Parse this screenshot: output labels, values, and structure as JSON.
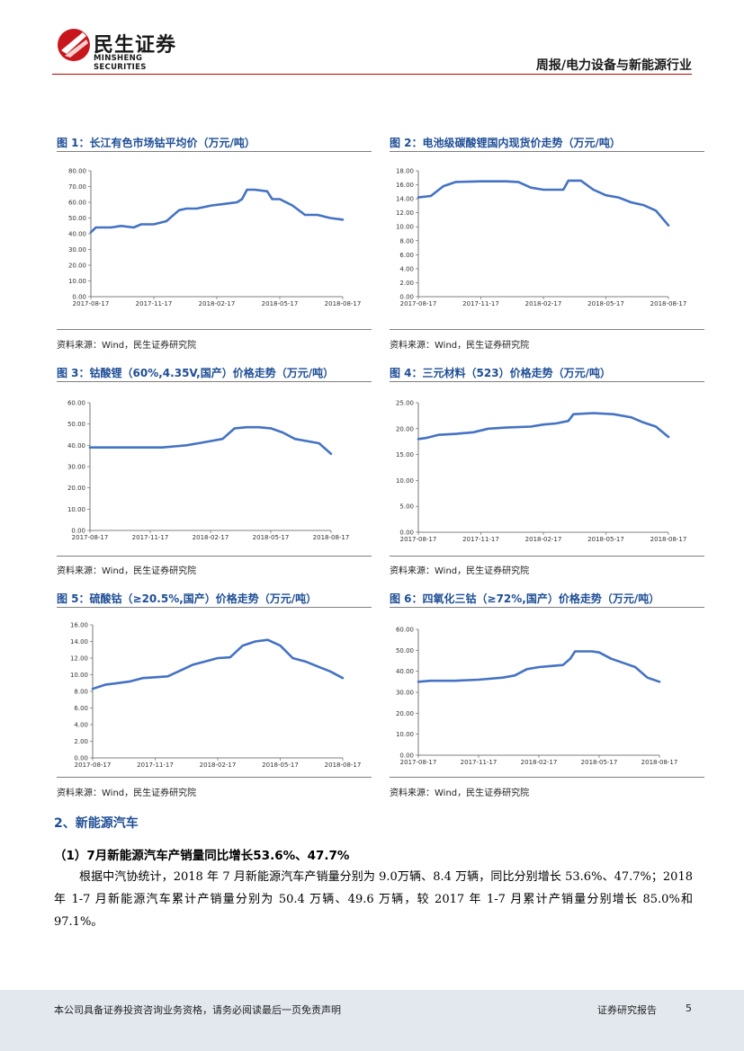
{
  "header": {
    "logo_cn": "民生证券",
    "logo_en": "MINSHENG SECURITIES",
    "report_type": "周报/电力设备与新能源行业"
  },
  "figures": [
    {
      "title": "图 1：长江有色市场钴平均价（万元/吨）",
      "source": "资料来源：Wind，民生证券研究院",
      "chart_data": {
        "type": "line",
        "title": "长江有色市场钴平均价（万元/吨）",
        "ylim": [
          0,
          80
        ],
        "yticks": [
          "0.00",
          "10.00",
          "20.00",
          "30.00",
          "40.00",
          "50.00",
          "60.00",
          "70.00",
          "80.00"
        ],
        "xticks": [
          "2017-08-17",
          "2017-11-17",
          "2018-02-17",
          "2018-05-17",
          "2018-08-17"
        ],
        "x": [
          0,
          0.02,
          0.08,
          0.12,
          0.17,
          0.2,
          0.25,
          0.3,
          0.35,
          0.38,
          0.42,
          0.48,
          0.53,
          0.58,
          0.6,
          0.62,
          0.65,
          0.7,
          0.72,
          0.75,
          0.8,
          0.85,
          0.9,
          0.95,
          1
        ],
        "values": [
          41,
          44,
          44,
          45,
          44,
          46,
          46,
          48,
          55,
          56,
          56,
          58,
          59,
          60,
          62,
          68,
          68,
          67,
          62,
          62,
          58,
          52,
          52,
          50,
          49
        ],
        "color": "#4472c4"
      }
    },
    {
      "title": "图 2：电池级碳酸锂国内现货价走势（万元/吨）",
      "source": "资料来源：Wind，民生证券研究院",
      "chart_data": {
        "type": "line",
        "title": "电池级碳酸锂国内现货价走势（万元/吨）",
        "ylim": [
          0,
          18
        ],
        "yticks": [
          "0.00",
          "2.00",
          "4.00",
          "6.00",
          "8.00",
          "10.00",
          "12.00",
          "14.00",
          "16.00",
          "18.00"
        ],
        "xticks": [
          "2017-08-17",
          "2017-11-17",
          "2018-02-17",
          "2018-05-17",
          "2018-08-17"
        ],
        "x": [
          0,
          0.05,
          0.1,
          0.15,
          0.25,
          0.35,
          0.4,
          0.45,
          0.5,
          0.53,
          0.58,
          0.6,
          0.65,
          0.7,
          0.75,
          0.8,
          0.85,
          0.9,
          0.95,
          1
        ],
        "values": [
          14.2,
          14.4,
          15.8,
          16.4,
          16.5,
          16.5,
          16.4,
          15.6,
          15.3,
          15.3,
          15.3,
          16.6,
          16.6,
          15.3,
          14.5,
          14.2,
          13.5,
          13.1,
          12.3,
          10.2
        ],
        "color": "#4472c4"
      }
    },
    {
      "title": "图 3：钴酸锂（60%,4.35V,国产）价格走势（万元/吨）",
      "source": "资料来源：Wind，民生证券研究院",
      "chart_data": {
        "type": "line",
        "title": "钴酸锂（60%,4.35V,国产）价格走势（万元/吨）",
        "ylim": [
          0,
          60
        ],
        "yticks": [
          "0.00",
          "10.00",
          "20.00",
          "30.00",
          "40.00",
          "50.00",
          "60.00"
        ],
        "xticks": [
          "2017-08-17",
          "2017-11-17",
          "2018-02-17",
          "2018-05-17",
          "2018-08-17"
        ],
        "x": [
          0,
          0.2,
          0.3,
          0.35,
          0.4,
          0.45,
          0.5,
          0.55,
          0.6,
          0.65,
          0.7,
          0.75,
          0.8,
          0.85,
          0.9,
          0.95,
          1
        ],
        "values": [
          39,
          39,
          39,
          39.5,
          40,
          41,
          42,
          43,
          48,
          48.5,
          48.5,
          48,
          46,
          43,
          42,
          41,
          36
        ],
        "color": "#4472c4"
      }
    },
    {
      "title": "图 4：三元材料（523）价格走势（万元/吨）",
      "source": "资料来源：Wind，民生证券研究院",
      "chart_data": {
        "type": "line",
        "title": "三元材料（523）价格走势（万元/吨）",
        "ylim": [
          0,
          25
        ],
        "yticks": [
          "0.00",
          "5.00",
          "10.00",
          "15.00",
          "20.00",
          "25.00"
        ],
        "xticks": [
          "2017-08-17",
          "2017-11-17",
          "2018-02-17",
          "2018-05-17",
          "2018-08-17"
        ],
        "x": [
          0,
          0.03,
          0.08,
          0.15,
          0.22,
          0.28,
          0.35,
          0.45,
          0.5,
          0.55,
          0.6,
          0.62,
          0.7,
          0.78,
          0.85,
          0.9,
          0.95,
          1
        ],
        "values": [
          18,
          18.2,
          18.8,
          19,
          19.3,
          20,
          20.2,
          20.4,
          20.8,
          21,
          21.5,
          22.8,
          23,
          22.8,
          22.2,
          21.2,
          20.4,
          18.4
        ],
        "color": "#4472c4"
      }
    },
    {
      "title": "图 5：硫酸钴（≥20.5%,国产）价格走势（万元/吨）",
      "source": "资料来源：Wind，民生证券研究院",
      "chart_data": {
        "type": "line",
        "title": "硫酸钴（≥20.5%,国产）价格走势（万元/吨）",
        "ylim": [
          0,
          16
        ],
        "yticks": [
          "0.00",
          "2.00",
          "4.00",
          "6.00",
          "8.00",
          "10.00",
          "12.00",
          "14.00",
          "16.00"
        ],
        "xticks": [
          "2017-08-17",
          "2017-11-17",
          "2018-02-17",
          "2018-05-17",
          "2018-08-17"
        ],
        "x": [
          0,
          0.05,
          0.1,
          0.15,
          0.2,
          0.25,
          0.3,
          0.35,
          0.4,
          0.45,
          0.5,
          0.55,
          0.6,
          0.65,
          0.7,
          0.75,
          0.8,
          0.85,
          0.9,
          0.95,
          1
        ],
        "values": [
          8.3,
          8.8,
          9,
          9.2,
          9.6,
          9.7,
          9.8,
          10.5,
          11.2,
          11.6,
          12,
          12.1,
          13.5,
          14,
          14.2,
          13.5,
          12,
          11.6,
          11,
          10.4,
          9.6
        ],
        "color": "#4472c4"
      }
    },
    {
      "title": "图 6：四氧化三钴（≥72%,国产）价格走势（万元/吨）",
      "source": "资料来源：Wind，民生证券研究院",
      "chart_data": {
        "type": "line",
        "title": "四氧化三钴（≥72%,国产）价格走势（万元/吨）",
        "ylim": [
          0,
          60
        ],
        "yticks": [
          "0.00",
          "10.00",
          "20.00",
          "30.00",
          "40.00",
          "50.00",
          "60.00"
        ],
        "xticks": [
          "2017-08-17",
          "2017-11-17",
          "2018-02-17",
          "2018-05-17",
          "2018-08-17"
        ],
        "x": [
          0,
          0.05,
          0.15,
          0.25,
          0.35,
          0.4,
          0.45,
          0.5,
          0.55,
          0.6,
          0.63,
          0.65,
          0.72,
          0.75,
          0.8,
          0.85,
          0.9,
          0.95,
          1
        ],
        "values": [
          35,
          35.5,
          35.5,
          36,
          37,
          38,
          41,
          42,
          42.5,
          43,
          46,
          49.5,
          49.5,
          49,
          46,
          44,
          42,
          37,
          35
        ],
        "color": "#4472c4"
      }
    }
  ],
  "section": {
    "heading": "2、新能源汽车",
    "subheading": "（1）7月新能源汽车产销量同比增长53.6%、47.7%",
    "paragraph": "根据中汽协统计，2018 年 7 月新能源汽车产销量分别为 9.0万辆、8.4 万辆，同比分别增长 53.6%、47.7%；2018 年 1-7 月新能源汽车累计产销量分别为 50.4 万辆、49.6 万辆，较 2017 年 1-7 月累计产销量分别增长 85.0%和 97.1%。"
  },
  "footer": {
    "disclaimer": "本公司具备证券投资咨询业务资格，请务必阅读最后一页免责声明",
    "report_label": "证券研究报告",
    "page_number": "5"
  }
}
